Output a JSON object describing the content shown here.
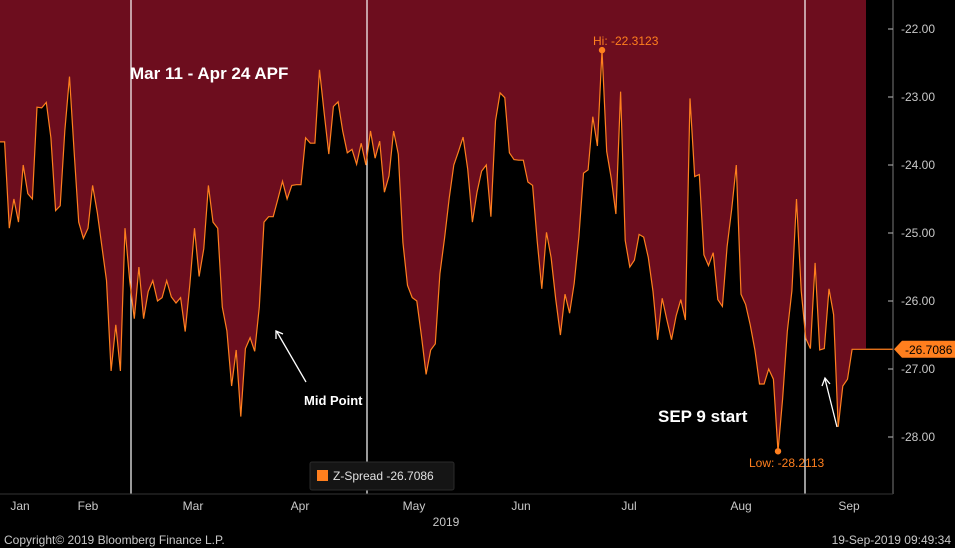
{
  "chart_data": {
    "type": "area",
    "series": [
      {
        "name": "Z-Spread",
        "values": [
          -23.66,
          -23.66,
          -24.93,
          -24.5,
          -24.84,
          -24.0,
          -24.42,
          -24.5,
          -23.15,
          -23.16,
          -23.08,
          -23.6,
          -24.67,
          -24.6,
          -23.5,
          -22.7,
          -23.8,
          -24.84,
          -25.08,
          -24.93,
          -24.3,
          -24.7,
          -25.2,
          -25.7,
          -27.03,
          -26.35,
          -27.03,
          -24.93,
          -25.7,
          -26.26,
          -25.5,
          -26.26,
          -25.86,
          -25.7,
          -26.0,
          -25.95,
          -25.7,
          -25.94,
          -26.03,
          -25.95,
          -26.45,
          -25.75,
          -24.93,
          -25.64,
          -25.23,
          -24.3,
          -24.84,
          -24.93,
          -26.09,
          -26.44,
          -27.25,
          -26.72,
          -27.7,
          -26.7,
          -26.54,
          -26.74,
          -26.09,
          -24.84,
          -24.76,
          -24.76,
          -24.5,
          -24.24,
          -24.5,
          -24.3,
          -24.29,
          -24.29,
          -23.6,
          -23.68,
          -23.68,
          -22.6,
          -23.24,
          -23.84,
          -23.14,
          -23.07,
          -23.5,
          -23.82,
          -23.77,
          -23.99,
          -23.68,
          -24.0,
          -23.5,
          -23.9,
          -23.65,
          -24.4,
          -24.16,
          -23.5,
          -23.84,
          -25.14,
          -25.77,
          -25.95,
          -26.0,
          -26.51,
          -27.08,
          -26.72,
          -26.63,
          -25.6,
          -25.07,
          -24.49,
          -24.0,
          -23.8,
          -23.59,
          -24.06,
          -24.84,
          -24.4,
          -24.09,
          -24.0,
          -24.76,
          -23.35,
          -22.94,
          -23.01,
          -23.82,
          -23.92,
          -23.93,
          -23.93,
          -24.25,
          -24.3,
          -25.12,
          -25.82,
          -24.99,
          -25.36,
          -25.97,
          -26.5,
          -25.9,
          -26.18,
          -25.74,
          -25.05,
          -24.12,
          -24.07,
          -23.29,
          -23.72,
          -22.31,
          -23.8,
          -24.2,
          -24.72,
          -22.92,
          -25.11,
          -25.5,
          -25.4,
          -25.02,
          -25.06,
          -25.36,
          -25.86,
          -26.57,
          -25.96,
          -26.28,
          -26.57,
          -26.22,
          -25.98,
          -26.28,
          -23.02,
          -24.17,
          -24.14,
          -25.32,
          -25.48,
          -25.29,
          -25.98,
          -26.08,
          -25.2,
          -24.65,
          -24.0,
          -25.9,
          -26.05,
          -26.35,
          -26.72,
          -27.22,
          -27.22,
          -27.0,
          -27.15,
          -28.21,
          -27.44,
          -26.45,
          -25.85,
          -24.5,
          -25.85,
          -26.55,
          -26.7,
          -25.44,
          -26.72,
          -26.7,
          -25.82,
          -26.2,
          -27.85,
          -27.25,
          -27.15,
          -26.71,
          -26.71,
          -26.71,
          -26.71
        ]
      }
    ],
    "x_tick_labels": [
      "Jan",
      "Feb",
      "Mar",
      "Apr",
      "May",
      "Jun",
      "Jul",
      "Aug",
      "Sep"
    ],
    "x_title": "2019",
    "y_tick_labels": [
      "-22.00",
      "-23.00",
      "-24.00",
      "-25.00",
      "-26.00",
      "-27.00",
      "-28.00"
    ],
    "ylim": [
      -28.75,
      -21.6
    ],
    "y_inverted": true,
    "colors": {
      "fill_above_line": "#6d0d1e",
      "fill_below_line": "#000000",
      "line": "#ff7f1e",
      "marker": "#ff7f1e",
      "vertical_lines": "#ffffff"
    },
    "high_label": "Hi: -22.3123",
    "low_label": "Low: -28.2113",
    "last_value_label": "-26.7086",
    "annotations": [
      "Mar 11 - Apr 24 APF",
      "Mid Point",
      "SEP 9 start"
    ]
  },
  "legend": {
    "label": "Z-Spread -26.7086",
    "swatch_color": "#ff7f1e"
  },
  "footer": {
    "copyright": "Copyright© 2019 Bloomberg Finance L.P.",
    "timestamp": "19-Sep-2019 09:49:34"
  }
}
